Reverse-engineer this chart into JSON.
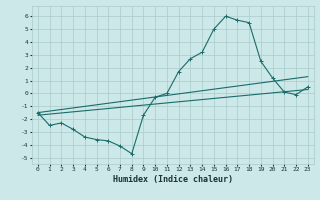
{
  "title": "",
  "xlabel": "Humidex (Indice chaleur)",
  "background_color": "#cce8e8",
  "grid_color": "#aacccc",
  "line_color": "#1a6b6b",
  "xlim": [
    -0.5,
    23.5
  ],
  "ylim": [
    -5.5,
    6.8
  ],
  "xticks": [
    0,
    1,
    2,
    3,
    4,
    5,
    6,
    7,
    8,
    9,
    10,
    11,
    12,
    13,
    14,
    15,
    16,
    17,
    18,
    19,
    20,
    21,
    22,
    23
  ],
  "yticks": [
    -5,
    -4,
    -3,
    -2,
    -1,
    0,
    1,
    2,
    3,
    4,
    5,
    6
  ],
  "line1_x": [
    0,
    1,
    2,
    3,
    4,
    5,
    6,
    7,
    8,
    9,
    10,
    11,
    12,
    13,
    14,
    15,
    16,
    17,
    18,
    19,
    20,
    21,
    22,
    23
  ],
  "line1_y": [
    -1.5,
    -2.5,
    -2.3,
    -2.8,
    -3.4,
    -3.6,
    -3.7,
    -4.1,
    -4.7,
    -1.7,
    -0.3,
    0.0,
    1.7,
    2.7,
    3.2,
    5.0,
    6.0,
    5.7,
    5.5,
    2.5,
    1.2,
    0.1,
    -0.1,
    0.5
  ],
  "line2_x": [
    0,
    23
  ],
  "line2_y": [
    -1.7,
    0.3
  ],
  "line3_x": [
    0,
    23
  ],
  "line3_y": [
    -1.5,
    1.3
  ],
  "marker": "+"
}
